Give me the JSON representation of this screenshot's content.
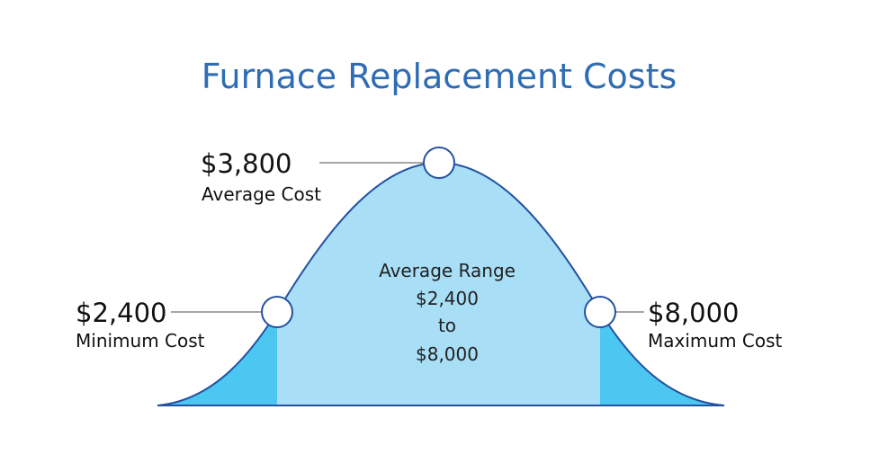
{
  "title": "Furnace Replacement Costs",
  "points": [
    {
      "value": "$3,800",
      "label": "Average Cost"
    },
    {
      "value": "$2,400",
      "label": "Minimum Cost"
    },
    {
      "value": "$8,000",
      "label": "Maximum Cost"
    }
  ],
  "range": {
    "heading": "Average Range",
    "low": "$2,400",
    "joiner": "to",
    "high": "$8,000"
  }
}
